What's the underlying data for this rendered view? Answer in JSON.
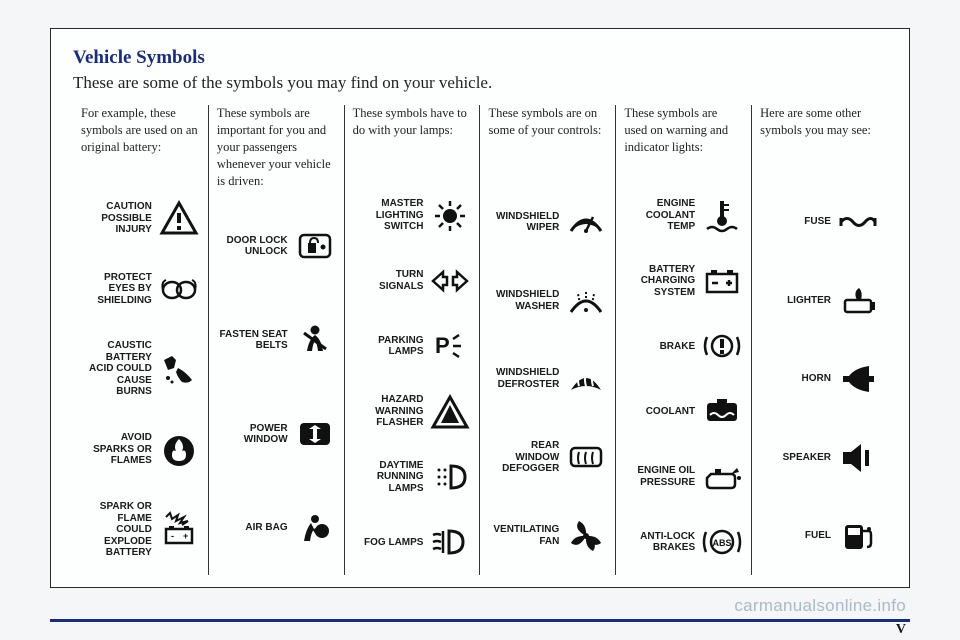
{
  "title": "Vehicle Symbols",
  "subtitle": "These are some of the symbols you may find on your vehicle.",
  "watermark": "carmanualsonline.info",
  "page_number": "V",
  "colors": {
    "heading": "#1a2d7a",
    "text": "#222222",
    "border": "#2a2a2a",
    "icon": "#1a1a1a"
  },
  "columns": [
    {
      "heading": "For example, these symbols are used on an original battery:",
      "items": [
        {
          "label": "CAUTION POSSIBLE INJURY",
          "icon": "warning-triangle"
        },
        {
          "label": "PROTECT EYES BY SHIELDING",
          "icon": "goggles"
        },
        {
          "label": "CAUSTIC BATTERY ACID COULD CAUSE BURNS",
          "icon": "acid-hand"
        },
        {
          "label": "AVOID SPARKS OR FLAMES",
          "icon": "flame-circle"
        },
        {
          "label": "SPARK OR FLAME COULD EXPLODE BATTERY",
          "icon": "explode-battery"
        }
      ]
    },
    {
      "heading": "These symbols are important for you and your passengers whenever your vehicle is driven:",
      "items": [
        {
          "label": "DOOR LOCK UNLOCK",
          "icon": "door-lock"
        },
        {
          "label": "FASTEN SEAT BELTS",
          "icon": "seat-belt"
        },
        {
          "label": "POWER WINDOW",
          "icon": "power-window"
        },
        {
          "label": "AIR BAG",
          "icon": "airbag"
        }
      ]
    },
    {
      "heading": "These symbols have to do with your lamps:",
      "items": [
        {
          "label": "MASTER LIGHTING SWITCH",
          "icon": "light-switch"
        },
        {
          "label": "TURN SIGNALS",
          "icon": "turn-signals"
        },
        {
          "label": "PARKING LAMPS",
          "icon": "parking-lamp"
        },
        {
          "label": "HAZARD WARNING FLASHER",
          "icon": "hazard"
        },
        {
          "label": "DAYTIME RUNNING LAMPS",
          "icon": "drl"
        },
        {
          "label": "FOG LAMPS",
          "icon": "fog-lamp"
        }
      ]
    },
    {
      "heading": "These symbols are on some of your controls:",
      "items": [
        {
          "label": "WINDSHIELD WIPER",
          "icon": "wiper"
        },
        {
          "label": "WINDSHIELD WASHER",
          "icon": "washer"
        },
        {
          "label": "WINDSHIELD DEFROSTER",
          "icon": "defroster-front"
        },
        {
          "label": "REAR WINDOW DEFOGGER",
          "icon": "defroster-rear"
        },
        {
          "label": "VENTILATING FAN",
          "icon": "fan"
        }
      ]
    },
    {
      "heading": "These symbols are used on warning and indicator lights:",
      "items": [
        {
          "label": "ENGINE COOLANT TEMP",
          "icon": "coolant-temp"
        },
        {
          "label": "BATTERY CHARGING SYSTEM",
          "icon": "battery"
        },
        {
          "label": "BRAKE",
          "icon": "brake"
        },
        {
          "label": "COOLANT",
          "icon": "coolant"
        },
        {
          "label": "ENGINE OIL PRESSURE",
          "icon": "oil"
        },
        {
          "label": "ANTI-LOCK BRAKES",
          "icon": "abs"
        }
      ]
    },
    {
      "heading": "Here are some other symbols you may see:",
      "items": [
        {
          "label": "FUSE",
          "icon": "fuse"
        },
        {
          "label": "LIGHTER",
          "icon": "lighter"
        },
        {
          "label": "HORN",
          "icon": "horn"
        },
        {
          "label": "SPEAKER",
          "icon": "speaker"
        },
        {
          "label": "FUEL",
          "icon": "fuel"
        }
      ]
    }
  ]
}
